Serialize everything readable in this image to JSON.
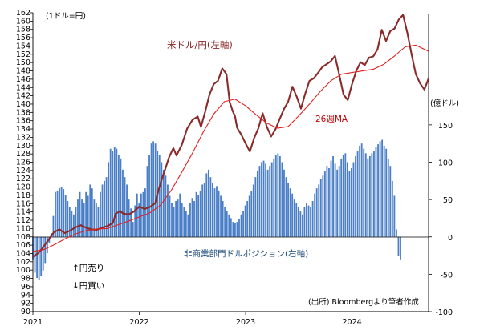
{
  "chart_data": {
    "type": "bar+line",
    "xlabel": "",
    "x_tick_labels": [
      "2021",
      "2022",
      "2023",
      "2024"
    ],
    "x_ticks": [
      2021.0,
      2022.0,
      2023.0,
      2024.0
    ],
    "xlim": [
      2021.0,
      2024.72
    ],
    "left_axis": {
      "unit_label": "(1ドル=円)",
      "ylim": [
        90,
        162
      ],
      "tick_step": 2,
      "tick_labels": [
        "90",
        "92",
        "94",
        "96",
        "98",
        "100",
        "102",
        "104",
        "106",
        "108",
        "110",
        "112",
        "114",
        "116",
        "118",
        "120",
        "122",
        "124",
        "126",
        "128",
        "130",
        "132",
        "134",
        "136",
        "138",
        "140",
        "142",
        "144",
        "146",
        "148",
        "150",
        "152",
        "154",
        "156",
        "158",
        "160",
        "162"
      ]
    },
    "right_axis": {
      "unit_label": "(億ドル)",
      "ylim": [
        -100,
        300
      ],
      "tick_values": [
        -100,
        -50,
        0,
        50,
        100,
        150
      ],
      "tick_labels": [
        "-100",
        "-50",
        "0",
        "50",
        "100",
        "150"
      ]
    },
    "series": [
      {
        "name": "米ドル/円(左軸)",
        "axis": "left",
        "kind": "line",
        "color": "#8b2a2a",
        "points": [
          [
            2021.0,
            103.2
          ],
          [
            2021.05,
            104.1
          ],
          [
            2021.1,
            105.6
          ],
          [
            2021.15,
            107.4
          ],
          [
            2021.2,
            109.2
          ],
          [
            2021.25,
            109.8
          ],
          [
            2021.3,
            108.9
          ],
          [
            2021.35,
            109.5
          ],
          [
            2021.4,
            110.3
          ],
          [
            2021.45,
            110.8
          ],
          [
            2021.5,
            110.2
          ],
          [
            2021.55,
            109.8
          ],
          [
            2021.6,
            109.7
          ],
          [
            2021.65,
            110.2
          ],
          [
            2021.7,
            110.6
          ],
          [
            2021.75,
            111.3
          ],
          [
            2021.78,
            113.6
          ],
          [
            2021.82,
            114.2
          ],
          [
            2021.85,
            113.6
          ],
          [
            2021.9,
            113.4
          ],
          [
            2021.95,
            114.1
          ],
          [
            2022.0,
            115.3
          ],
          [
            2022.05,
            114.7
          ],
          [
            2022.1,
            115.2
          ],
          [
            2022.15,
            116.1
          ],
          [
            2022.18,
            119.2
          ],
          [
            2022.22,
            122.5
          ],
          [
            2022.25,
            124.8
          ],
          [
            2022.28,
            127.2
          ],
          [
            2022.32,
            129.4
          ],
          [
            2022.35,
            127.6
          ],
          [
            2022.4,
            130.2
          ],
          [
            2022.45,
            134.1
          ],
          [
            2022.5,
            136.2
          ],
          [
            2022.55,
            137.0
          ],
          [
            2022.58,
            134.5
          ],
          [
            2022.62,
            138.2
          ],
          [
            2022.66,
            142.3
          ],
          [
            2022.7,
            144.8
          ],
          [
            2022.74,
            145.6
          ],
          [
            2022.78,
            148.6
          ],
          [
            2022.82,
            147.2
          ],
          [
            2022.85,
            140.5
          ],
          [
            2022.88,
            138.2
          ],
          [
            2022.9,
            137.1
          ],
          [
            2022.92,
            134.3
          ],
          [
            2022.96,
            132.6
          ],
          [
            2023.0,
            130.5
          ],
          [
            2023.04,
            128.6
          ],
          [
            2023.08,
            131.8
          ],
          [
            2023.12,
            134.2
          ],
          [
            2023.16,
            137.8
          ],
          [
            2023.2,
            134.5
          ],
          [
            2023.24,
            132.2
          ],
          [
            2023.28,
            133.9
          ],
          [
            2023.32,
            136.4
          ],
          [
            2023.36,
            138.8
          ],
          [
            2023.4,
            140.6
          ],
          [
            2023.44,
            144.2
          ],
          [
            2023.48,
            141.8
          ],
          [
            2023.52,
            138.9
          ],
          [
            2023.56,
            142.5
          ],
          [
            2023.6,
            145.6
          ],
          [
            2023.64,
            146.2
          ],
          [
            2023.68,
            147.5
          ],
          [
            2023.72,
            148.9
          ],
          [
            2023.76,
            149.6
          ],
          [
            2023.8,
            150.3
          ],
          [
            2023.84,
            151.6
          ],
          [
            2023.88,
            147.1
          ],
          [
            2023.92,
            142.3
          ],
          [
            2023.96,
            141.0
          ],
          [
            2024.0,
            144.8
          ],
          [
            2024.04,
            148.0
          ],
          [
            2024.08,
            150.1
          ],
          [
            2024.12,
            149.4
          ],
          [
            2024.16,
            151.2
          ],
          [
            2024.2,
            151.5
          ],
          [
            2024.24,
            153.2
          ],
          [
            2024.28,
            157.9
          ],
          [
            2024.32,
            155.2
          ],
          [
            2024.36,
            157.6
          ],
          [
            2024.4,
            158.2
          ],
          [
            2024.44,
            160.4
          ],
          [
            2024.48,
            161.5
          ],
          [
            2024.52,
            157.2
          ],
          [
            2024.56,
            152.0
          ],
          [
            2024.6,
            147.2
          ],
          [
            2024.64,
            145.0
          ],
          [
            2024.68,
            143.5
          ],
          [
            2024.72,
            146.2
          ]
        ]
      },
      {
        "name": "26週MA",
        "axis": "left",
        "kind": "line",
        "color": "#e02020",
        "points": [
          [
            2021.0,
            104.5
          ],
          [
            2021.1,
            104.9
          ],
          [
            2021.2,
            106.1
          ],
          [
            2021.3,
            107.5
          ],
          [
            2021.4,
            108.7
          ],
          [
            2021.5,
            109.5
          ],
          [
            2021.6,
            109.9
          ],
          [
            2021.7,
            110.0
          ],
          [
            2021.8,
            110.9
          ],
          [
            2021.9,
            111.8
          ],
          [
            2022.0,
            112.8
          ],
          [
            2022.1,
            113.8
          ],
          [
            2022.2,
            115.6
          ],
          [
            2022.3,
            119.2
          ],
          [
            2022.4,
            123.6
          ],
          [
            2022.5,
            128.2
          ],
          [
            2022.6,
            133.2
          ],
          [
            2022.7,
            137.6
          ],
          [
            2022.8,
            140.6
          ],
          [
            2022.9,
            141.2
          ],
          [
            2023.0,
            139.6
          ],
          [
            2023.1,
            137.4
          ],
          [
            2023.2,
            135.4
          ],
          [
            2023.3,
            134.2
          ],
          [
            2023.4,
            134.6
          ],
          [
            2023.5,
            137.2
          ],
          [
            2023.6,
            140.0
          ],
          [
            2023.7,
            143.0
          ],
          [
            2023.8,
            145.6
          ],
          [
            2023.9,
            147.2
          ],
          [
            2024.0,
            147.6
          ],
          [
            2024.1,
            148.0
          ],
          [
            2024.2,
            148.4
          ],
          [
            2024.3,
            149.6
          ],
          [
            2024.4,
            151.6
          ],
          [
            2024.5,
            153.8
          ],
          [
            2024.6,
            154.2
          ],
          [
            2024.72,
            152.7
          ]
        ]
      },
      {
        "name": "非商業部門ドルポジション(右軸)",
        "axis": "right",
        "kind": "bar",
        "color": "#4a7ec7",
        "x_start": 2021.0,
        "x_step": 0.0192,
        "values": [
          -30,
          -48,
          -55,
          -58,
          -52,
          -45,
          -35,
          -22,
          -8,
          5,
          28,
          60,
          62,
          65,
          67,
          64,
          56,
          48,
          40,
          35,
          30,
          40,
          50,
          60,
          50,
          45,
          60,
          55,
          70,
          65,
          50,
          45,
          40,
          60,
          70,
          75,
          80,
          100,
          118,
          115,
          120,
          118,
          110,
          105,
          90,
          80,
          70,
          50,
          38,
          20,
          42,
          58,
          45,
          58,
          60,
          65,
          95,
          110,
          125,
          128,
          125,
          115,
          110,
          100,
          90,
          82,
          70,
          55,
          45,
          40,
          48,
          50,
          58,
          45,
          40,
          35,
          30,
          45,
          52,
          48,
          60,
          56,
          62,
          70,
          72,
          85,
          90,
          80,
          72,
          65,
          68,
          62,
          55,
          48,
          40,
          35,
          30,
          25,
          20,
          18,
          20,
          24,
          30,
          35,
          42,
          48,
          55,
          62,
          70,
          80,
          88,
          95,
          100,
          102,
          98,
          90,
          95,
          100,
          105,
          110,
          112,
          108,
          100,
          90,
          80,
          72,
          65,
          58,
          50,
          45,
          40,
          35,
          30,
          40,
          45,
          42,
          40,
          48,
          58,
          65,
          70,
          78,
          82,
          88,
          95,
          92,
          102,
          108,
          98,
          90,
          95,
          105,
          110,
          112,
          100,
          88,
          92,
          100,
          108,
          115,
          122,
          125,
          118,
          112,
          105,
          108,
          112,
          115,
          120,
          124,
          128,
          130,
          122,
          118,
          105,
          95,
          75,
          55,
          10,
          -25,
          -30
        ]
      }
    ],
    "annotations": {
      "usdjpy_label": "米ドル/円(左軸)",
      "ma_label": "26週MA",
      "position_label": "非商業部門ドルポジション(右軸)",
      "arrow_sell": "↑円売り",
      "arrow_buy": "↓円買い",
      "source": "(出所) Bloombergより筆者作成"
    },
    "grid": false
  }
}
